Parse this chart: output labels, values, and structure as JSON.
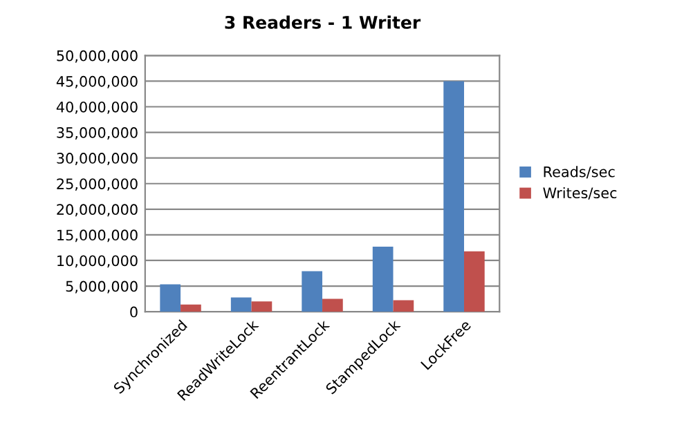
{
  "chart_data": {
    "type": "bar",
    "title": "3 Readers - 1 Writer",
    "categories": [
      "Synchronized",
      "ReadWriteLock",
      "ReentrantLock",
      "StampedLock",
      "LockFree"
    ],
    "series": [
      {
        "name": "Reads/sec",
        "color": "#4f81bd",
        "values": [
          5350000,
          2800000,
          7900000,
          12700000,
          45000000
        ]
      },
      {
        "name": "Writes/sec",
        "color": "#c0504d",
        "values": [
          1400000,
          2000000,
          2500000,
          2250000,
          11800000
        ]
      }
    ],
    "ylim": [
      0,
      50000000
    ],
    "yticks": [
      {
        "value": 0,
        "label": "0"
      },
      {
        "value": 5000000,
        "label": "5,000,000"
      },
      {
        "value": 10000000,
        "label": "10,000,000"
      },
      {
        "value": 15000000,
        "label": "15,000,000"
      },
      {
        "value": 20000000,
        "label": "20,000,000"
      },
      {
        "value": 25000000,
        "label": "25,000,000"
      },
      {
        "value": 30000000,
        "label": "30,000,000"
      },
      {
        "value": 35000000,
        "label": "35,000,000"
      },
      {
        "value": 40000000,
        "label": "40,000,000"
      },
      {
        "value": 45000000,
        "label": "45,000,000"
      },
      {
        "value": 50000000,
        "label": "50,000,000"
      }
    ],
    "grid": "y",
    "legend": "right"
  }
}
